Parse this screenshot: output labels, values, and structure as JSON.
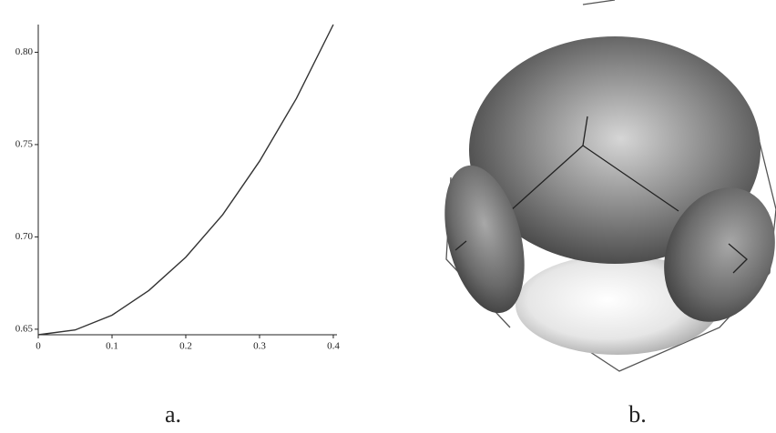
{
  "chart_data": {
    "type": "line",
    "x": [
      0,
      0.05,
      0.1,
      0.15,
      0.2,
      0.25,
      0.3,
      0.35,
      0.4
    ],
    "values": [
      0.647,
      0.6496,
      0.6576,
      0.671,
      0.689,
      0.712,
      0.741,
      0.775,
      0.815
    ],
    "color": "#333333",
    "xlim": [
      0,
      0.405
    ],
    "xticks": [
      0,
      0.1,
      0.2,
      0.3,
      0.4
    ],
    "ylim": [
      0.647,
      0.815
    ],
    "yticks": [
      {
        "value": 0.65,
        "label": "0.65"
      },
      {
        "value": 0.7,
        "label": "0.70"
      },
      0.75,
      {
        "value": 0.8,
        "label": "0.80"
      }
    ]
  },
  "captions": [
    "a.",
    "b."
  ]
}
